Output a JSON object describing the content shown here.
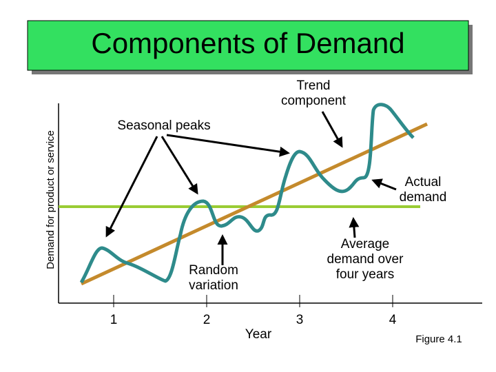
{
  "title": "Components of Demand",
  "y_axis_label": "Demand for product or service",
  "x_axis_label": "Year",
  "x_tick_labels": [
    1,
    2,
    3,
    4
  ],
  "annotations": {
    "trend": [
      "Trend",
      "component"
    ],
    "seasonal": [
      "Seasonal peaks"
    ],
    "actual": [
      "Actual",
      "demand"
    ],
    "average": [
      "Average",
      "demand over",
      "four years"
    ],
    "random": [
      "Random",
      "variation"
    ]
  },
  "caption": "Figure 4.1"
}
